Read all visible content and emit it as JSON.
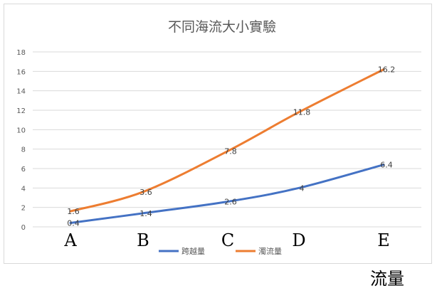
{
  "chart_data": {
    "type": "line",
    "title": "不同海流大小實驗",
    "categories": [
      "A",
      "B",
      "C",
      "D",
      "E"
    ],
    "series": [
      {
        "name": "跨越量",
        "color": "#4472c4",
        "values": [
          0.4,
          1.4,
          2.6,
          4,
          6.4
        ],
        "labels": [
          "0.4",
          "1.4",
          "2.6",
          "4",
          "6.4"
        ]
      },
      {
        "name": "濁流量",
        "color": "#ed7d31",
        "values": [
          1.6,
          3.6,
          7.8,
          11.8,
          16.2
        ],
        "labels": [
          "1.6",
          "3.6",
          "7.8",
          "11.8",
          "16.2"
        ]
      }
    ],
    "ylim": [
      0,
      18
    ],
    "yticks": [
      "0",
      "2",
      "4",
      "6",
      "8",
      "10",
      "12",
      "14",
      "16",
      "18"
    ],
    "grid": true,
    "legend": "bottom"
  },
  "caption": "流量"
}
